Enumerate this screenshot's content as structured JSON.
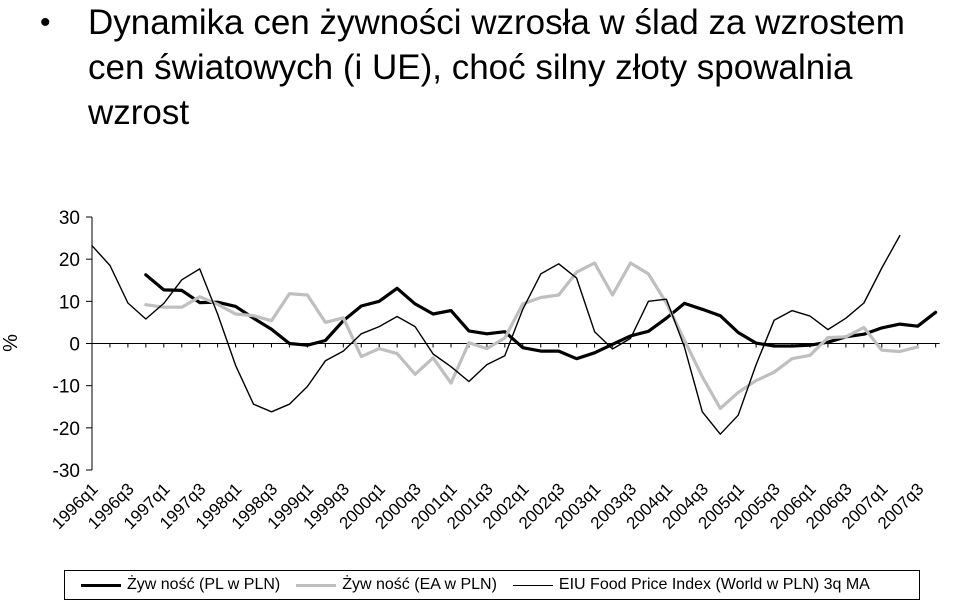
{
  "header": {
    "bullet": "•",
    "title": "Dynamika cen żywności wzrosła w ślad za wzrostem cen światowych (i UE), choć silny złoty spowalnia wzrost"
  },
  "chart_data": {
    "type": "line",
    "title": "Dynamika cen żywności wzrosła w ślad za wzrostem cen światowych (i UE), choć silny złoty spowalnia wzrost",
    "ylabel": "%",
    "xlabel": "",
    "ylim": [
      -30,
      30
    ],
    "yticks": [
      -30,
      -20,
      -10,
      0,
      10,
      20,
      30
    ],
    "grid": false,
    "legend_position": "bottom",
    "categories": [
      "1996q1",
      "1996q2",
      "1996q3",
      "1996q4",
      "1997q1",
      "1997q2",
      "1997q3",
      "1997q4",
      "1998q1",
      "1998q2",
      "1998q3",
      "1998q4",
      "1999q1",
      "1999q2",
      "1999q3",
      "1999q4",
      "2000q1",
      "2000q2",
      "2000q3",
      "2000q4",
      "2001q1",
      "2001q2",
      "2001q3",
      "2001q4",
      "2002q1",
      "2002q2",
      "2002q3",
      "2002q4",
      "2003q1",
      "2003q2",
      "2003q3",
      "2003q4",
      "2004q1",
      "2004q2",
      "2004q3",
      "2004q4",
      "2005q1",
      "2005q2",
      "2005q3",
      "2005q4",
      "2006q1",
      "2006q2",
      "2006q3",
      "2006q4",
      "2007q1",
      "2007q2",
      "2007q3",
      "2007q4"
    ],
    "tick_labels": [
      "1996q1",
      "1996q3",
      "1997q1",
      "1997q3",
      "1998q1",
      "1998q3",
      "1999q1",
      "1999q3",
      "2000q1",
      "2000q3",
      "2001q1",
      "2001q3",
      "2002q1",
      "2002q3",
      "2003q1",
      "2003q3",
      "2004q1",
      "2004q3",
      "2005q1",
      "2005q3",
      "2006q1",
      "2006q3",
      "2007q1",
      "2007q3"
    ],
    "series": [
      {
        "name": "Żyw ność (PL w PLN)",
        "color": "#000000",
        "weight": "thick",
        "values": [
          null,
          null,
          null,
          16.3,
          12.7,
          12.6,
          9.7,
          9.8,
          8.8,
          6.0,
          3.4,
          0,
          -0.4,
          0.7,
          5.4,
          8.9,
          10.0,
          13.1,
          9.4,
          7.0,
          7.8,
          3.0,
          2.3,
          2.8,
          -1.0,
          -1.8,
          -1.8,
          -3.6,
          -2.2,
          -0.2,
          1.8,
          2.9,
          6.0,
          9.5,
          8.1,
          6.6,
          2.6,
          0.1,
          -0.6,
          -0.6,
          -0.4,
          0.3,
          1.6,
          2.2,
          3.7,
          4.6,
          4.1,
          7.4
        ]
      },
      {
        "name": "Żyw ność (EA w PLN)",
        "color": "#bfbfbf",
        "weight": "thick",
        "values": [
          null,
          null,
          null,
          9.2,
          8.6,
          8.6,
          11.1,
          9.3,
          7.0,
          6.6,
          5.4,
          11.8,
          11.5,
          5.0,
          6.1,
          -3.1,
          -1.2,
          -2.4,
          -7.3,
          -3.4,
          -9.4,
          0.2,
          -1.2,
          1.3,
          9.4,
          10.9,
          11.5,
          16.9,
          19.1,
          11.5,
          19.1,
          16.5,
          9.6,
          0.8,
          -7.9,
          -15.4,
          -11.6,
          -8.8,
          -6.8,
          -3.6,
          -2.8,
          1.4,
          1.6,
          3.8,
          -1.6,
          -1.9,
          -0.8,
          null
        ]
      },
      {
        "name": "EIU Food Price Index (World w PLN) 3q MA",
        "color": "#000000",
        "weight": "thin",
        "values": [
          23.2,
          18.5,
          9.6,
          5.8,
          9.5,
          15.1,
          17.7,
          7.0,
          -5.2,
          -14.4,
          -16.2,
          -14.4,
          -10.2,
          -4.1,
          -1.8,
          2.3,
          4.0,
          6.4,
          4.0,
          -2.5,
          -5.5,
          -9.0,
          -5.0,
          -2.9,
          8.1,
          16.5,
          18.9,
          15.5,
          2.8,
          -1.3,
          1.2,
          10.0,
          10.5,
          -0.8,
          -16.2,
          -21.5,
          -17.0,
          -5.0,
          5.5,
          7.8,
          6.5,
          3.3,
          6.0,
          9.6,
          17.9,
          25.6,
          null,
          null
        ]
      }
    ]
  }
}
